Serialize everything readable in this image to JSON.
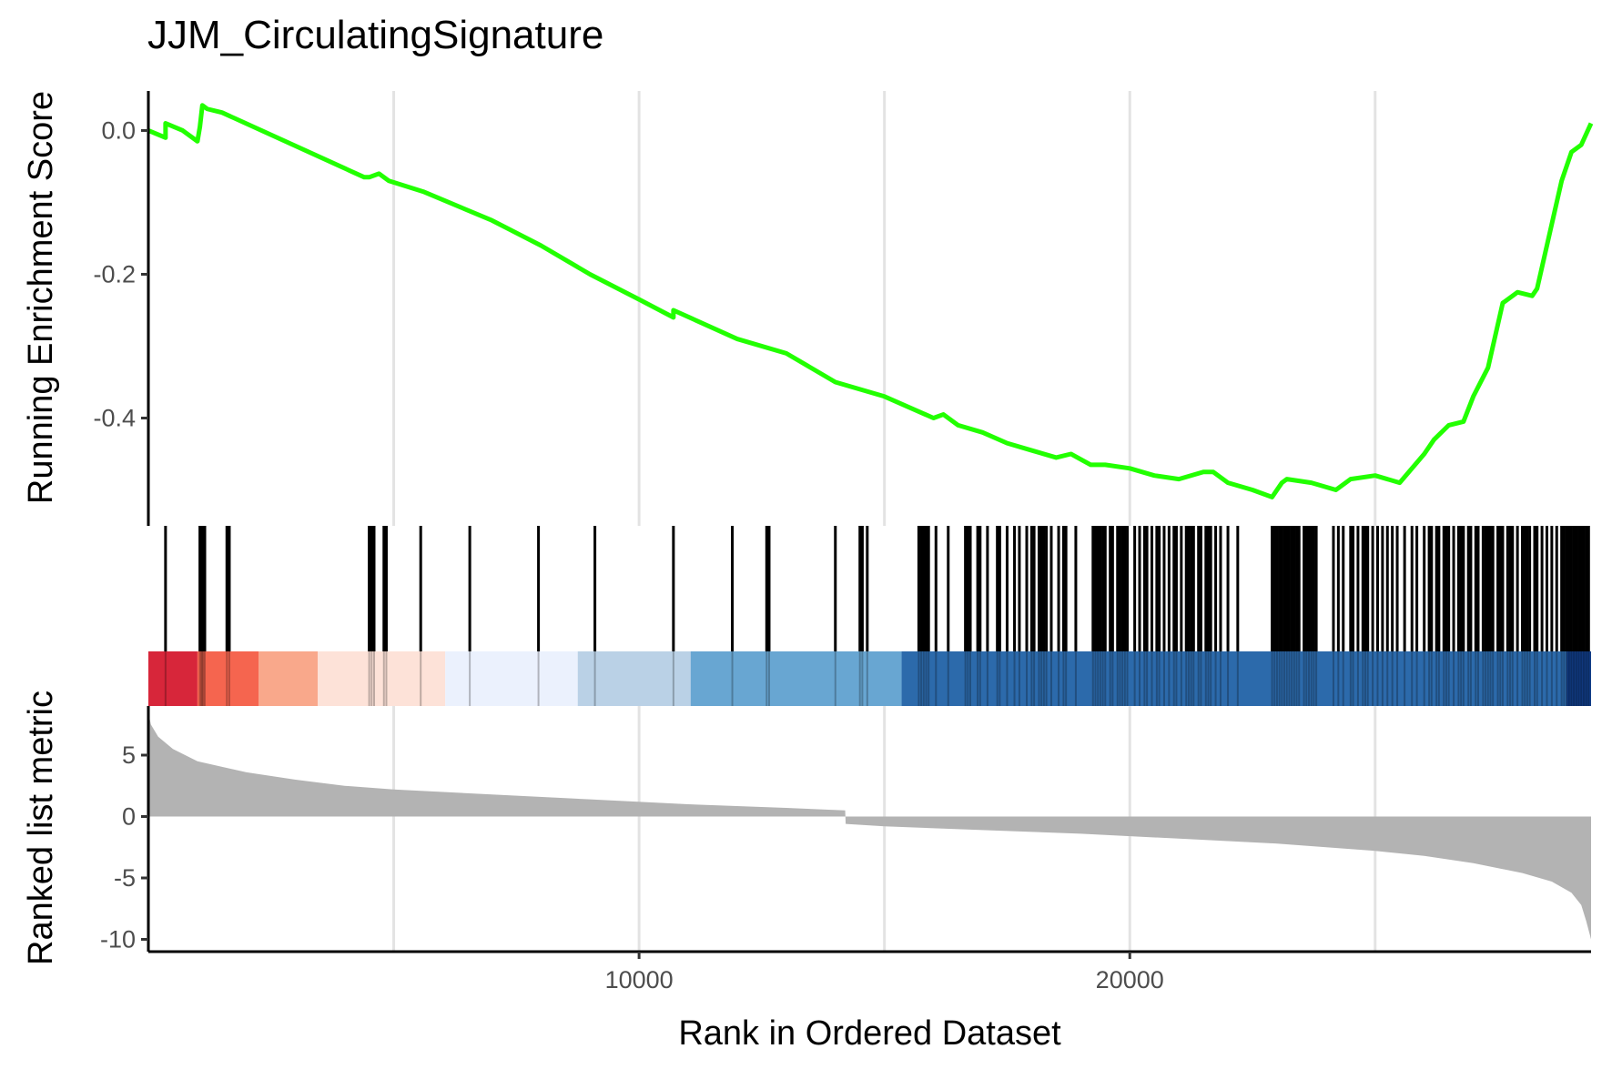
{
  "chart_data": {
    "type": "line",
    "title": "JJM_CirculatingSignature",
    "xlabel": "Rank in Ordered Dataset",
    "xlim": [
      0,
      29400
    ],
    "x_ticks": [
      10000,
      20000
    ],
    "x_tick_labels": [
      "10000",
      "20000"
    ],
    "grid_x": [
      5000,
      10000,
      15000,
      20000,
      25000
    ],
    "grid": true,
    "line_color": "#22ff00",
    "panels": [
      {
        "name": "running-enrichment-score",
        "ylabel": "Running Enrichment Score",
        "ylim": [
          -0.55,
          0.055
        ],
        "y_ticks": [
          0.0,
          -0.2,
          -0.4
        ],
        "y_tick_labels": [
          "0.0",
          "-0.2",
          "-0.4"
        ],
        "series": [
          {
            "x": [
              0,
              350,
              350,
              700,
              1000,
              1050,
              1100,
              1200,
              1500,
              4400,
              4500,
              4700,
              4900,
              5600,
              7000,
              8000,
              9000,
              10000,
              10700,
              10700,
              12000,
              13000,
              14000,
              15000,
              16000,
              16200,
              16500,
              17000,
              17500,
              18000,
              18500,
              18800,
              19200,
              19500,
              20000,
              20500,
              21000,
              21500,
              21700,
              22000,
              22500,
              22900,
              23100,
              23200,
              23700,
              24200,
              24500,
              25000,
              25500,
              26000,
              26200,
              26500,
              26800,
              27000,
              27300,
              27600,
              27900,
              28200,
              28300,
              28700,
              28800,
              29000,
              29200,
              29400
            ],
            "y": [
              0.0,
              -0.01,
              0.01,
              0.0,
              -0.015,
              0.005,
              0.035,
              0.03,
              0.025,
              -0.065,
              -0.065,
              -0.06,
              -0.07,
              -0.085,
              -0.125,
              -0.16,
              -0.2,
              -0.235,
              -0.26,
              -0.25,
              -0.29,
              -0.31,
              -0.35,
              -0.37,
              -0.4,
              -0.395,
              -0.41,
              -0.42,
              -0.435,
              -0.445,
              -0.455,
              -0.45,
              -0.465,
              -0.465,
              -0.47,
              -0.48,
              -0.485,
              -0.475,
              -0.475,
              -0.49,
              -0.5,
              -0.51,
              -0.49,
              -0.485,
              -0.49,
              -0.5,
              -0.485,
              -0.48,
              -0.49,
              -0.45,
              -0.43,
              -0.41,
              -0.405,
              -0.37,
              -0.33,
              -0.24,
              -0.225,
              -0.23,
              -0.22,
              -0.1,
              -0.07,
              -0.03,
              -0.02,
              0.01
            ]
          }
        ]
      },
      {
        "name": "hit-barcode",
        "hits": [
          350,
          1050,
          1080,
          1100,
          1120,
          1150,
          1600,
          1650,
          4500,
          4550,
          4600,
          4800,
          4850,
          5550,
          6550,
          7950,
          9100,
          10700,
          11900,
          12600,
          12650,
          14000,
          14500,
          14550,
          14650,
          15700,
          15750,
          15800,
          15850,
          15900,
          16050,
          16300,
          16650,
          16700,
          16750,
          16900,
          16950,
          17100,
          17300,
          17350,
          17500,
          17650,
          17750,
          17900,
          18000,
          18050,
          18150,
          18200,
          18250,
          18300,
          18400,
          18550,
          18650,
          18700,
          18900,
          19250,
          19300,
          19350,
          19400,
          19450,
          19500,
          19600,
          19650,
          19750,
          19800,
          19850,
          19900,
          19950,
          20100,
          20200,
          20300,
          20350,
          20450,
          20550,
          20600,
          20700,
          20800,
          20900,
          20950,
          21050,
          21150,
          21200,
          21250,
          21300,
          21400,
          21450,
          21550,
          21600,
          21650,
          21750,
          21850,
          22000,
          22200,
          22900,
          22950,
          23000,
          23050,
          23100,
          23150,
          23200,
          23250,
          23300,
          23350,
          23400,
          23450,
          23550,
          23600,
          23650,
          23700,
          23750,
          23800,
          24150,
          24250,
          24350,
          24500,
          24550,
          24650,
          24750,
          24800,
          24850,
          24950,
          25050,
          25150,
          25250,
          25350,
          25450,
          25600,
          25750,
          25850,
          26000,
          26100,
          26150,
          26250,
          26300,
          26400,
          26450,
          26500,
          26600,
          26700,
          26750,
          26800,
          26900,
          26950,
          27050,
          27100,
          27200,
          27250,
          27300,
          27350,
          27400,
          27500,
          27550,
          27600,
          27700,
          27750,
          27800,
          27900,
          28000,
          28050,
          28100,
          28150,
          28250,
          28300,
          28400,
          28500,
          28600,
          28700,
          28800,
          28850,
          28900,
          28950,
          29000,
          29050,
          29100,
          29150,
          29200,
          29250,
          29300,
          29350
        ]
      },
      {
        "name": "rank-color-strip",
        "segments": [
          {
            "start": 0,
            "end": 1000,
            "color": "#d7263a"
          },
          {
            "start": 1000,
            "end": 2250,
            "color": "#f5654f"
          },
          {
            "start": 2250,
            "end": 3450,
            "color": "#f9a88b"
          },
          {
            "start": 3450,
            "end": 6050,
            "color": "#fde2d8"
          },
          {
            "start": 6050,
            "end": 8750,
            "color": "#ebf1fd"
          },
          {
            "start": 8750,
            "end": 11050,
            "color": "#bad1e6"
          },
          {
            "start": 11050,
            "end": 15350,
            "color": "#68a6d2"
          },
          {
            "start": 15350,
            "end": 28900,
            "color": "#2c6aab"
          },
          {
            "start": 28900,
            "end": 29400,
            "color": "#113c86"
          }
        ]
      },
      {
        "name": "ranked-list-metric",
        "ylabel": "Ranked list metric",
        "ylim": [
          -11,
          9
        ],
        "y_ticks": [
          5,
          0,
          -5,
          -10
        ],
        "y_tick_labels": [
          "5",
          "0",
          "-5",
          "-10"
        ],
        "fill_color": "#b3b3b3",
        "series": [
          {
            "x": [
              0,
              50,
              200,
              500,
              1000,
              2000,
              3000,
              4000,
              5000,
              7000,
              9000,
              11000,
              13000,
              14200,
              14210,
              15000,
              17000,
              19000,
              21000,
              23000,
              25000,
              26000,
              27000,
              28000,
              28600,
              29000,
              29200,
              29300,
              29400
            ],
            "y": [
              8.5,
              7.5,
              6.5,
              5.5,
              4.5,
              3.6,
              3.0,
              2.5,
              2.2,
              1.8,
              1.4,
              1.0,
              0.7,
              0.5,
              -0.6,
              -0.8,
              -1.1,
              -1.4,
              -1.8,
              -2.2,
              -2.8,
              -3.2,
              -3.8,
              -4.6,
              -5.3,
              -6.2,
              -7.2,
              -8.5,
              -10.0
            ]
          }
        ]
      }
    ]
  }
}
